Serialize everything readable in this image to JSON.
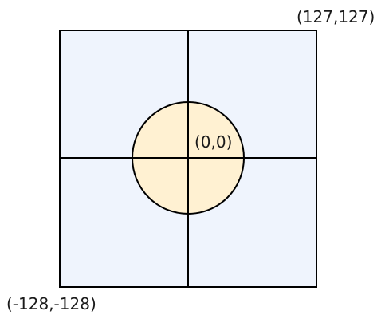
{
  "labels": {
    "top_right": "(127,127)",
    "center": "(0,0)",
    "bottom_left": "(-128,-128)"
  },
  "colors": {
    "square_fill": "#eff4fd",
    "circle_fill": "#fff1d2",
    "stroke": "#000000"
  }
}
